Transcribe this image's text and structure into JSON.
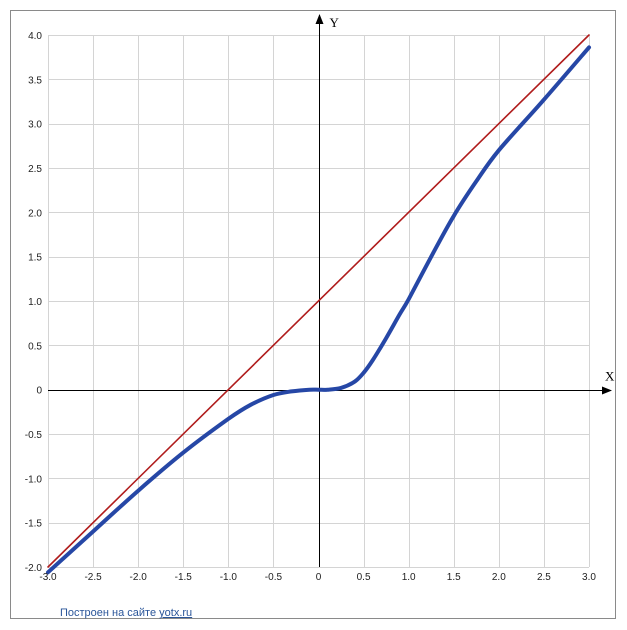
{
  "chart_data": {
    "type": "line",
    "xlabel": "X",
    "ylabel": "Y",
    "xlim": [
      -3,
      3
    ],
    "ylim": [
      -2,
      4
    ],
    "grid": true,
    "x_ticks": [
      -3.0,
      -2.5,
      -2.0,
      -1.5,
      -1.0,
      -0.5,
      0,
      0.5,
      1.0,
      1.5,
      2.0,
      2.5,
      3.0
    ],
    "x_tick_labels": [
      "-3.0",
      "-2.5",
      "-2.0",
      "-1.5",
      "-1.0",
      "-0.5",
      "0",
      "0.5",
      "1.0",
      "1.5",
      "2.0",
      "2.5",
      "3.0"
    ],
    "y_ticks": [
      4.0,
      3.5,
      3.0,
      2.5,
      2.0,
      1.5,
      1.0,
      0.5,
      0,
      -0.5,
      -1.0,
      -1.5,
      -2.0
    ],
    "y_tick_labels": [
      "4.0",
      "3.5",
      "3.0",
      "2.5",
      "2.0",
      "1.5",
      "1.0",
      "0.5",
      "0",
      "-0.5",
      "-1.0",
      "-1.5",
      "-2.0"
    ],
    "series": [
      {
        "color": "#b01c1c",
        "x": [
          -3.0,
          3.0
        ],
        "y": [
          -2.0,
          4.0
        ]
      },
      {
        "color": "#2647a6",
        "x": [
          -3.0,
          -2.5,
          -2.0,
          -1.5,
          -1.0,
          -0.75,
          -0.5,
          -0.3,
          -0.1,
          0,
          0.1,
          0.25,
          0.4,
          0.5,
          0.6,
          0.75,
          0.9,
          1.0,
          1.25,
          1.5,
          1.75,
          2.0,
          2.5,
          3.0
        ],
        "y": [
          -2.06,
          -1.6,
          -1.14,
          -0.71,
          -0.33,
          -0.17,
          -0.06,
          -0.02,
          0.0,
          0.0,
          0.0,
          0.02,
          0.09,
          0.19,
          0.33,
          0.58,
          0.85,
          1.02,
          1.5,
          1.96,
          2.35,
          2.7,
          3.27,
          3.86
        ]
      }
    ]
  },
  "footer": {
    "credit_text": "Построен на сайте ",
    "credit_link": "yotx.ru"
  }
}
